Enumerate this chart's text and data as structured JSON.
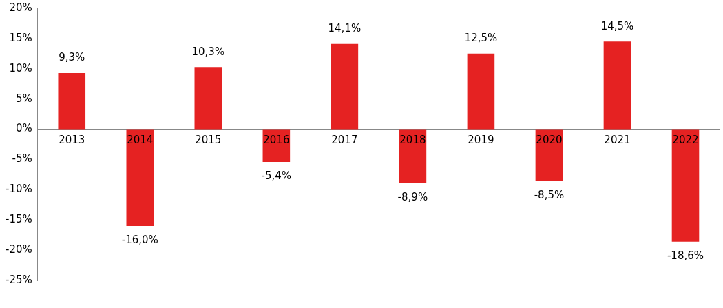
{
  "chart_data": {
    "type": "bar",
    "categories": [
      "2013",
      "2014",
      "2015",
      "2016",
      "2017",
      "2018",
      "2019",
      "2020",
      "2021",
      "2022"
    ],
    "values": [
      9.3,
      -16.0,
      10.3,
      -5.4,
      14.1,
      -8.9,
      12.5,
      -8.5,
      14.5,
      -18.6
    ],
    "value_labels": [
      "9,3%",
      "-16,0%",
      "10,3%",
      "-5,4%",
      "14,1%",
      "-8,9%",
      "12,5%",
      "-8,5%",
      "14,5%",
      "-18,6%"
    ],
    "color": "#e52222",
    "ylim": [
      -25,
      20
    ],
    "yticks": [
      {
        "value": -25,
        "label": "-25%"
      },
      {
        "value": -20,
        "label": "-20%"
      },
      {
        "value": -15,
        "label": "-15%"
      },
      {
        "value": -10,
        "label": "-10%"
      },
      {
        "value": -5,
        "label": "-5%"
      },
      {
        "value": 0,
        "label": "0%"
      },
      {
        "value": 5,
        "label": "5%"
      },
      {
        "value": 10,
        "label": "10%"
      },
      {
        "value": 15,
        "label": "15%"
      },
      {
        "value": 20,
        "label": "20%"
      }
    ],
    "grid": false,
    "legend": false
  }
}
